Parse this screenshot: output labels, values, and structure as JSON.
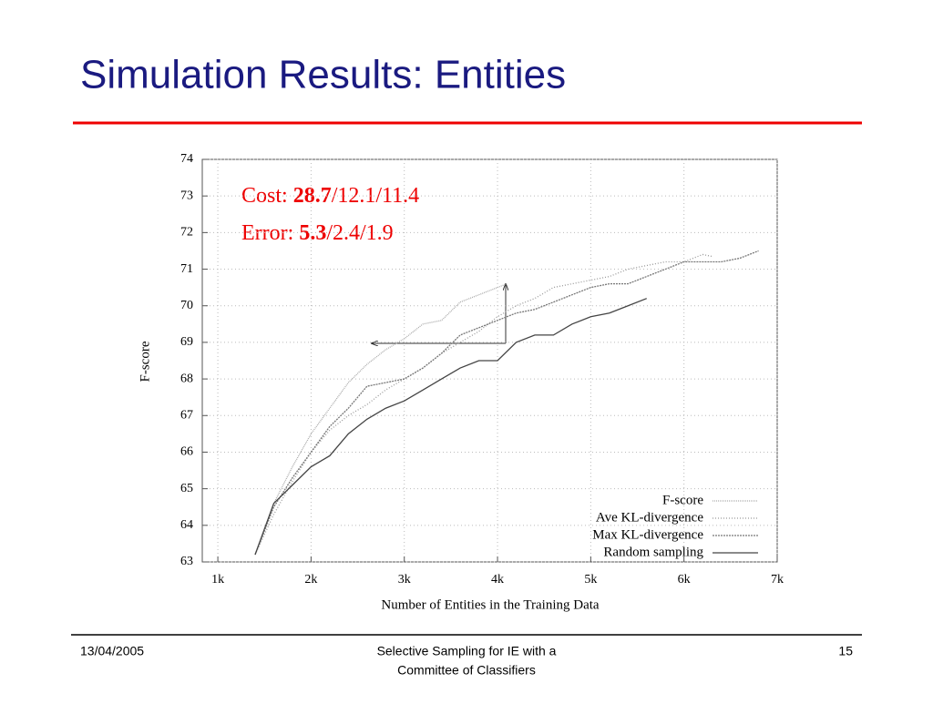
{
  "slide": {
    "title": "Simulation Results: Entities",
    "footer_date": "13/04/2005",
    "footer_center": [
      "Selective Sampling for IE with a",
      "Committee of Classifiers"
    ],
    "page_number": "15"
  },
  "chart_data": {
    "type": "line",
    "xlabel": "Number of Entities in the Training Data",
    "ylabel": "F-score",
    "annotations": [
      [
        "Cost:",
        "28.7",
        "/12.1/11.4"
      ],
      [
        "Error:",
        "5.3",
        "/2.4/1.9"
      ]
    ],
    "xlim": [
      833,
      7000
    ],
    "ylim": [
      63,
      74
    ],
    "xticks": [
      {
        "value": 1000,
        "label": "1k"
      },
      {
        "value": 2000,
        "label": "2k"
      },
      {
        "value": 3000,
        "label": "3k"
      },
      {
        "value": 4000,
        "label": "4k"
      },
      {
        "value": 5000,
        "label": "5k"
      },
      {
        "value": 6000,
        "label": "6k"
      },
      {
        "value": 7000,
        "label": "7k"
      }
    ],
    "yticks": [
      63,
      64,
      65,
      66,
      67,
      68,
      69,
      70,
      71,
      72,
      73,
      74
    ],
    "grid": true,
    "legend": "lower right",
    "series": [
      {
        "name": "F-score",
        "color": "#aaaaaa",
        "x": [
          1400,
          1600,
          1800,
          2000,
          2200,
          2400,
          2600,
          2800,
          3000,
          3200,
          3400,
          3600,
          3800,
          4000,
          4100
        ],
        "values": [
          63.2,
          64.6,
          65.6,
          66.5,
          67.2,
          67.9,
          68.4,
          68.8,
          69.1,
          69.5,
          69.6,
          70.1,
          70.3,
          70.5,
          70.6
        ]
      },
      {
        "name": "Ave KL-divergence",
        "color": "#999999",
        "x": [
          1400,
          1600,
          1800,
          2000,
          2200,
          2400,
          2600,
          2800,
          3000,
          3200,
          3400,
          3600,
          3800,
          4000,
          4200,
          4400,
          4600,
          4800,
          5000,
          5200,
          5400,
          5600,
          5800,
          6000,
          6200,
          6300
        ],
        "values": [
          63.2,
          64.3,
          65.2,
          66.0,
          66.6,
          67.0,
          67.3,
          67.7,
          68.0,
          68.3,
          68.7,
          69.0,
          69.3,
          69.7,
          70.0,
          70.2,
          70.5,
          70.6,
          70.7,
          70.8,
          71.0,
          71.1,
          71.2,
          71.2,
          71.4,
          71.35
        ]
      },
      {
        "name": "Max KL-divergence",
        "color": "#777777",
        "x": [
          1400,
          1600,
          1800,
          2000,
          2200,
          2400,
          2600,
          2800,
          3000,
          3200,
          3400,
          3600,
          3800,
          4000,
          4200,
          4400,
          4600,
          4800,
          5000,
          5200,
          5400,
          5600,
          5800,
          6000,
          6200,
          6400,
          6600,
          6800
        ],
        "values": [
          63.2,
          64.5,
          65.3,
          66.0,
          66.7,
          67.2,
          67.8,
          67.9,
          68.0,
          68.3,
          68.7,
          69.2,
          69.4,
          69.6,
          69.8,
          69.9,
          70.1,
          70.3,
          70.5,
          70.6,
          70.6,
          70.8,
          71.0,
          71.2,
          71.2,
          71.2,
          71.3,
          71.5
        ]
      },
      {
        "name": "Random sampling",
        "color": "#444444",
        "x": [
          1400,
          1600,
          1800,
          2000,
          2200,
          2400,
          2600,
          2800,
          3000,
          3200,
          3400,
          3600,
          3800,
          4000,
          4200,
          4400,
          4600,
          4800,
          5000,
          5200,
          5400,
          5600
        ],
        "values": [
          63.2,
          64.6,
          65.1,
          65.6,
          65.9,
          66.5,
          66.9,
          67.2,
          67.4,
          67.7,
          68.0,
          68.3,
          68.5,
          68.5,
          69.0,
          69.2,
          69.2,
          69.5,
          69.7,
          69.8,
          70.0,
          70.2
        ]
      }
    ]
  }
}
